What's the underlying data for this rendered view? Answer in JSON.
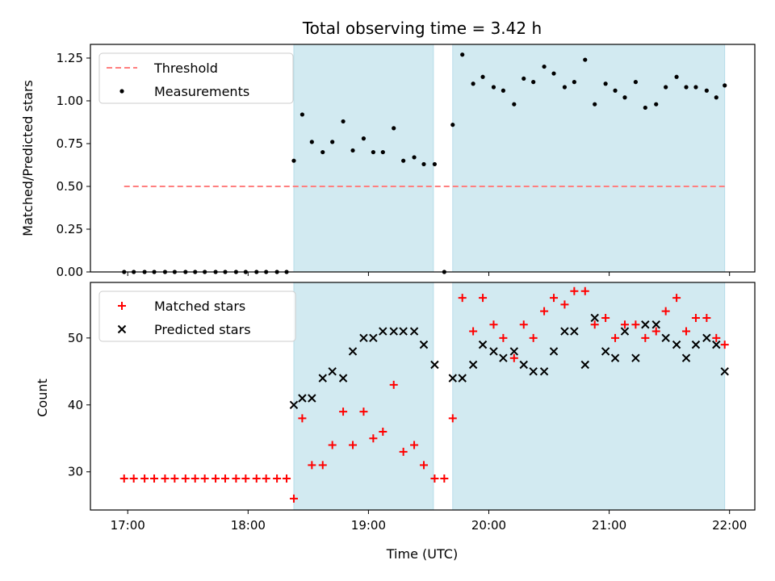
{
  "chart_data": [
    {
      "type": "scatter",
      "title": "Total observing time = 3.42 h",
      "xlabel": "",
      "ylabel": "Matched/Predicted stars",
      "ylim": [
        0,
        1.33
      ],
      "yticks": [
        0.0,
        0.25,
        0.5,
        0.75,
        1.0,
        1.25
      ],
      "ytick_labels": [
        "0.00",
        "0.25",
        "0.50",
        "0.75",
        "1.00",
        "1.25"
      ],
      "xlim": [
        16.69,
        22.21
      ],
      "xticks": [
        17,
        18,
        19,
        20,
        21,
        22
      ],
      "grid": false,
      "legend_placement": "top-left",
      "shaded_intervals": [
        [
          18.38,
          19.54
        ],
        [
          19.7,
          21.96
        ]
      ],
      "shade_color": "#add8e6",
      "series": [
        {
          "name": "Threshold",
          "kind": "dashed-line",
          "color": "#ff7f7f",
          "x": [
            16.97,
            21.96
          ],
          "y": [
            0.5,
            0.5
          ]
        },
        {
          "name": "Measurements",
          "kind": "dot",
          "color": "#000000",
          "x": [
            16.97,
            17.05,
            17.14,
            17.22,
            17.31,
            17.39,
            17.48,
            17.56,
            17.64,
            17.73,
            17.81,
            17.9,
            17.98,
            18.07,
            18.15,
            18.24,
            18.32,
            18.38,
            18.45,
            18.53,
            18.62,
            18.7,
            18.79,
            18.87,
            18.96,
            19.04,
            19.12,
            19.21,
            19.29,
            19.38,
            19.46,
            19.55,
            19.63,
            19.7,
            19.78,
            19.87,
            19.95,
            20.04,
            20.12,
            20.21,
            20.29,
            20.37,
            20.46,
            20.54,
            20.63,
            20.71,
            20.8,
            20.88,
            20.97,
            21.05,
            21.13,
            21.22,
            21.3,
            21.39,
            21.47,
            21.56,
            21.64,
            21.72,
            21.81,
            21.89,
            21.96
          ],
          "y": [
            0.0,
            0.0,
            0.0,
            0.0,
            0.0,
            0.0,
            0.0,
            0.0,
            0.0,
            0.0,
            0.0,
            0.0,
            0.0,
            0.0,
            0.0,
            0.0,
            0.0,
            0.65,
            0.92,
            0.76,
            0.7,
            0.76,
            0.88,
            0.71,
            0.78,
            0.7,
            0.7,
            0.84,
            0.65,
            0.67,
            0.63,
            0.63,
            0.0,
            0.86,
            1.27,
            1.1,
            1.14,
            1.08,
            1.06,
            0.98,
            1.13,
            1.11,
            1.2,
            1.16,
            1.08,
            1.11,
            1.24,
            0.98,
            1.1,
            1.06,
            1.02,
            1.11,
            0.96,
            0.98,
            1.08,
            1.14,
            1.08,
            1.08,
            1.06,
            1.02,
            1.09
          ]
        }
      ]
    },
    {
      "type": "scatter",
      "title": "",
      "xlabel": "Time (UTC)",
      "ylabel": "Count",
      "ylim": [
        24.3,
        58.3
      ],
      "yticks": [
        30,
        40,
        50
      ],
      "xlim": [
        16.69,
        22.21
      ],
      "xticks": [
        17,
        18,
        19,
        20,
        21,
        22
      ],
      "xtick_labels": [
        "17:00",
        "18:00",
        "19:00",
        "20:00",
        "21:00",
        "22:00"
      ],
      "grid": false,
      "legend_placement": "top-left",
      "shaded_intervals": [
        [
          18.38,
          19.54
        ],
        [
          19.7,
          21.96
        ]
      ],
      "shade_color": "#add8e6",
      "series": [
        {
          "name": "Matched stars",
          "marker": "plus",
          "color": "#ff0000",
          "x": [
            16.97,
            17.05,
            17.14,
            17.22,
            17.31,
            17.39,
            17.48,
            17.56,
            17.64,
            17.73,
            17.81,
            17.9,
            17.98,
            18.07,
            18.15,
            18.24,
            18.32,
            18.38,
            18.45,
            18.53,
            18.62,
            18.7,
            18.79,
            18.87,
            18.96,
            19.04,
            19.12,
            19.21,
            19.29,
            19.38,
            19.46,
            19.55,
            19.63,
            19.7,
            19.78,
            19.87,
            19.95,
            20.04,
            20.12,
            20.21,
            20.29,
            20.37,
            20.46,
            20.54,
            20.63,
            20.71,
            20.8,
            20.88,
            20.97,
            21.05,
            21.13,
            21.22,
            21.3,
            21.39,
            21.47,
            21.56,
            21.64,
            21.72,
            21.81,
            21.89,
            21.96
          ],
          "y": [
            29,
            29,
            29,
            29,
            29,
            29,
            29,
            29,
            29,
            29,
            29,
            29,
            29,
            29,
            29,
            29,
            29,
            26,
            38,
            31,
            31,
            34,
            39,
            34,
            39,
            35,
            36,
            43,
            33,
            34,
            31,
            29,
            29,
            38,
            56,
            51,
            56,
            52,
            50,
            47,
            52,
            50,
            54,
            56,
            55,
            57,
            57,
            52,
            53,
            50,
            52,
            52,
            50,
            51,
            54,
            56,
            51,
            53,
            53,
            50,
            49
          ]
        },
        {
          "name": "Predicted stars",
          "marker": "x",
          "color": "#000000",
          "x": [
            18.38,
            18.45,
            18.53,
            18.62,
            18.7,
            18.79,
            18.87,
            18.96,
            19.04,
            19.12,
            19.21,
            19.29,
            19.38,
            19.46,
            19.55,
            19.7,
            19.78,
            19.87,
            19.95,
            20.04,
            20.12,
            20.21,
            20.29,
            20.37,
            20.46,
            20.54,
            20.63,
            20.71,
            20.8,
            20.88,
            20.97,
            21.05,
            21.13,
            21.22,
            21.3,
            21.39,
            21.47,
            21.56,
            21.64,
            21.72,
            21.81,
            21.89,
            21.96
          ],
          "y": [
            40,
            41,
            41,
            44,
            45,
            44,
            48,
            50,
            50,
            51,
            51,
            51,
            51,
            49,
            46,
            44,
            44,
            46,
            49,
            48,
            47,
            48,
            46,
            45,
            45,
            48,
            51,
            51,
            46,
            53,
            48,
            47,
            51,
            47,
            52,
            52,
            50,
            49,
            47,
            49,
            50,
            49,
            45
          ]
        }
      ]
    }
  ]
}
